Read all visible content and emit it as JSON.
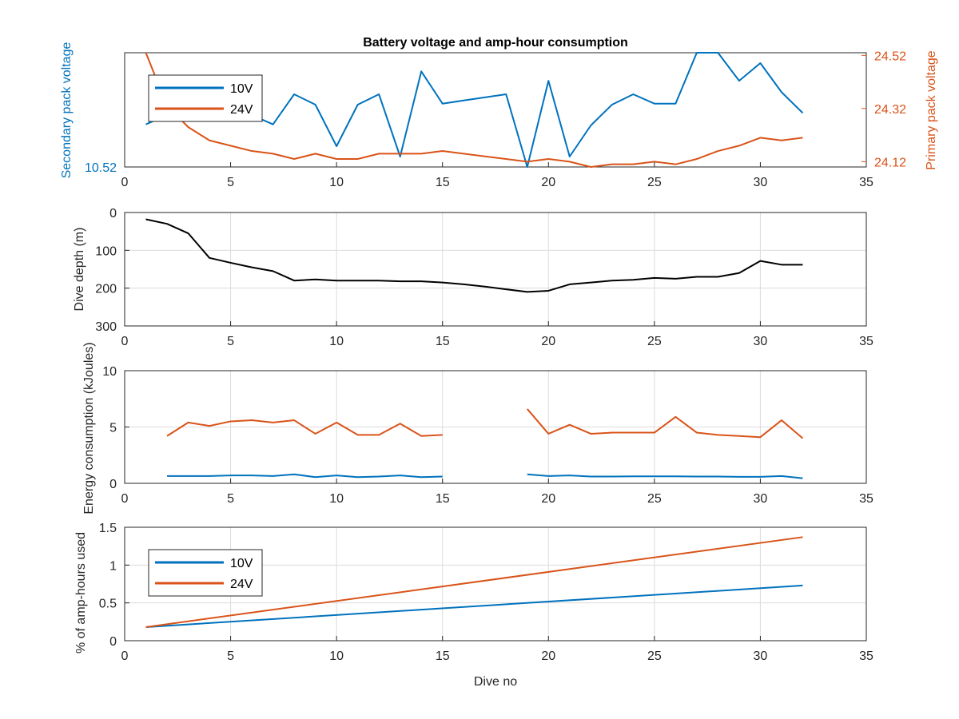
{
  "colors": {
    "series_10v": "#0072BD",
    "series_24v": "#D95319",
    "depth": "#000000",
    "axis": "#262626",
    "grid": "#dcdcdc"
  },
  "chart_data": [
    {
      "type": "line",
      "title": "Battery voltage and amp-hour consumption",
      "xlim": [
        0,
        35
      ],
      "x_ticks": [
        0,
        5,
        10,
        15,
        20,
        25,
        30,
        35
      ],
      "ylabel_left": "Secondary pack voltage",
      "ylabel_right": "Primary pack voltage",
      "left_ticks": [
        "10.52"
      ],
      "right_ticks": [
        "24.52",
        "24.32",
        "24.12"
      ],
      "left_ylim": [
        10.52,
        10.63
      ],
      "right_ylim": [
        24.1,
        24.53
      ],
      "grid": false,
      "legend": {
        "position": "top-left",
        "entries": [
          "10V",
          "24V"
        ]
      },
      "series": [
        {
          "name": "10V",
          "axis": "left",
          "x": [
            1,
            2,
            3,
            4,
            5,
            6,
            7,
            8,
            9,
            10,
            11,
            12,
            13,
            14,
            15,
            16,
            17,
            18,
            19,
            20,
            21,
            22,
            23,
            24,
            25,
            26,
            27,
            28,
            29,
            30,
            31,
            32
          ],
          "y": [
            10.561,
            10.57,
            10.575,
            10.578,
            10.58,
            10.57,
            10.561,
            10.59,
            10.58,
            10.54,
            10.58,
            10.59,
            10.53,
            10.612,
            10.581,
            10.584,
            10.587,
            10.59,
            10.52,
            10.603,
            10.53,
            10.56,
            10.58,
            10.59,
            10.581,
            10.581,
            10.632,
            10.632,
            10.603,
            10.62,
            10.592,
            10.572
          ]
        },
        {
          "name": "24V",
          "axis": "right",
          "x": [
            1,
            2,
            3,
            4,
            5,
            6,
            7,
            8,
            9,
            10,
            11,
            12,
            13,
            14,
            15,
            16,
            17,
            18,
            19,
            20,
            21,
            22,
            23,
            24,
            25,
            26,
            27,
            28,
            29,
            30,
            31,
            32
          ],
          "y": [
            24.53,
            24.33,
            24.25,
            24.2,
            24.18,
            24.16,
            24.15,
            24.13,
            24.15,
            24.13,
            24.13,
            24.15,
            24.15,
            24.15,
            24.16,
            24.15,
            24.14,
            24.13,
            24.12,
            24.13,
            24.12,
            24.1,
            24.11,
            24.11,
            24.12,
            24.11,
            24.13,
            24.16,
            24.18,
            24.21,
            24.2,
            24.21
          ]
        }
      ]
    },
    {
      "type": "line",
      "xlim": [
        0,
        35
      ],
      "x_ticks": [
        0,
        5,
        10,
        15,
        20,
        25,
        30,
        35
      ],
      "ylabel": "Dive depth (m)",
      "ylim": [
        0,
        300
      ],
      "y_reversed": true,
      "y_ticks": [
        0,
        100,
        200,
        300
      ],
      "grid": true,
      "series": [
        {
          "x": [
            1,
            2,
            3,
            4,
            5,
            6,
            7,
            8,
            9,
            10,
            11,
            12,
            13,
            14,
            15,
            16,
            17,
            18,
            19,
            20,
            21,
            22,
            23,
            24,
            25,
            26,
            27,
            28,
            29,
            30,
            31,
            32
          ],
          "y": [
            18,
            30,
            55,
            120,
            133,
            145,
            155,
            180,
            177,
            180,
            180,
            180,
            182,
            182,
            185,
            190,
            196,
            203,
            210,
            207,
            190,
            185,
            180,
            178,
            173,
            175,
            170,
            170,
            160,
            128,
            138,
            138
          ]
        }
      ]
    },
    {
      "type": "line",
      "xlim": [
        0,
        35
      ],
      "x_ticks": [
        0,
        5,
        10,
        15,
        20,
        25,
        30,
        35
      ],
      "ylabel": "Energy consumption (kJoules)",
      "ylim": [
        0,
        10
      ],
      "y_ticks": [
        0,
        5,
        10
      ],
      "grid": true,
      "series": [
        {
          "name": "24V",
          "segments": [
            {
              "x": [
                2,
                3,
                4,
                5,
                6,
                7,
                8,
                9,
                10,
                11,
                12,
                13,
                14,
                15
              ],
              "y": [
                4.2,
                5.4,
                5.1,
                5.5,
                5.6,
                5.4,
                5.6,
                4.4,
                5.4,
                4.3,
                4.3,
                5.3,
                4.2,
                4.3
              ]
            },
            {
              "x": [
                19,
                20,
                21,
                22,
                23,
                24,
                25,
                26,
                27,
                28,
                29,
                30,
                31,
                32
              ],
              "y": [
                6.6,
                4.4,
                5.2,
                4.4,
                4.5,
                4.5,
                4.5,
                5.9,
                4.5,
                4.3,
                4.2,
                4.1,
                5.6,
                4.0
              ]
            }
          ]
        },
        {
          "name": "10V",
          "segments": [
            {
              "x": [
                2,
                3,
                4,
                5,
                6,
                7,
                8,
                9,
                10,
                11,
                12,
                13,
                14,
                15
              ],
              "y": [
                0.65,
                0.65,
                0.65,
                0.7,
                0.7,
                0.65,
                0.8,
                0.55,
                0.7,
                0.55,
                0.6,
                0.7,
                0.55,
                0.6
              ]
            },
            {
              "x": [
                19,
                20,
                21,
                22,
                23,
                24,
                25,
                26,
                27,
                28,
                29,
                30,
                31,
                32
              ],
              "y": [
                0.8,
                0.65,
                0.7,
                0.6,
                0.6,
                0.62,
                0.62,
                0.62,
                0.6,
                0.6,
                0.58,
                0.58,
                0.65,
                0.45
              ]
            }
          ]
        }
      ]
    },
    {
      "type": "line",
      "xlim": [
        0,
        35
      ],
      "x_ticks": [
        0,
        5,
        10,
        15,
        20,
        25,
        30,
        35
      ],
      "xlabel": "Dive no",
      "ylabel": "% of amp-hours used",
      "ylim": [
        0,
        1.5
      ],
      "y_ticks": [
        "0",
        "0.5",
        "1",
        "1.5"
      ],
      "grid": true,
      "legend": {
        "position": "top-left",
        "entries": [
          "10V",
          "24V"
        ]
      },
      "series": [
        {
          "name": "10V",
          "x": [
            1,
            32
          ],
          "y": [
            0.18,
            0.73
          ]
        },
        {
          "name": "24V",
          "x": [
            1,
            32
          ],
          "y": [
            0.18,
            1.37
          ]
        }
      ]
    }
  ]
}
